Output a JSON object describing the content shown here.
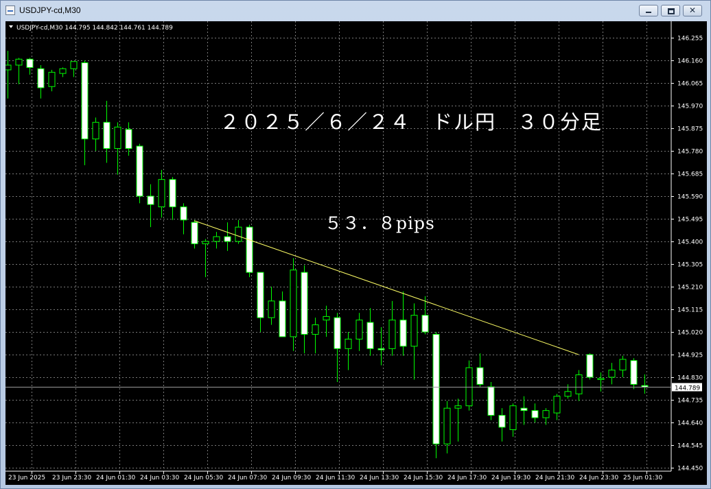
{
  "window": {
    "title": "USDJPY-cd,M30"
  },
  "chart_header": {
    "text": "USDJPY-cd,M30  144.795 144.842 144.761 144.789"
  },
  "annotations": {
    "title": "２０２５／６／２４　ドル円　３０分足",
    "pips": "５３．８pips"
  },
  "colors": {
    "background": "#000000",
    "grid": "#7a7a7a",
    "bull_body": "#000000",
    "bear_body": "#ffffff",
    "wick": "#00ff00",
    "trendline": "#ffff66",
    "bid_line": "#9a9a9a"
  },
  "chart_data": {
    "type": "candlestick",
    "symbol": "USDJPY-cd",
    "timeframe": "M30",
    "ylim": [
      144.45,
      146.255
    ],
    "y_ticks": [
      "146.255",
      "146.160",
      "146.065",
      "145.970",
      "145.875",
      "145.780",
      "145.685",
      "145.590",
      "145.495",
      "145.400",
      "145.305",
      "145.210",
      "145.115",
      "145.020",
      "144.925",
      "144.830",
      "144.735",
      "144.640",
      "144.545",
      "144.450"
    ],
    "x_ticks": [
      {
        "label": "23 Jun 2025",
        "index": 0
      },
      {
        "label": "23 Jun 23:30",
        "index": 4
      },
      {
        "label": "24 Jun 01:30",
        "index": 8
      },
      {
        "label": "24 Jun 03:30",
        "index": 12
      },
      {
        "label": "24 Jun 05:30",
        "index": 16
      },
      {
        "label": "24 Jun 07:30",
        "index": 20
      },
      {
        "label": "24 Jun 09:30",
        "index": 24
      },
      {
        "label": "24 Jun 11:30",
        "index": 28
      },
      {
        "label": "24 Jun 13:30",
        "index": 32
      },
      {
        "label": "24 Jun 15:30",
        "index": 36
      },
      {
        "label": "24 Jun 17:30",
        "index": 40
      },
      {
        "label": "24 Jun 19:30",
        "index": 44
      },
      {
        "label": "24 Jun 21:30",
        "index": 48
      },
      {
        "label": "24 Jun 23:30",
        "index": 52
      },
      {
        "label": "25 Jun 01:30",
        "index": 56
      }
    ],
    "current_price": "144.789",
    "trendline": {
      "from": {
        "index": 17,
        "price": 145.487
      },
      "to": {
        "index": 52,
        "price": 144.925
      }
    },
    "candles": [
      {
        "o": 146.12,
        "h": 146.2,
        "l": 146.0,
        "c": 146.14
      },
      {
        "o": 146.14,
        "h": 146.17,
        "l": 146.06,
        "c": 146.165
      },
      {
        "o": 146.165,
        "h": 146.17,
        "l": 146.1,
        "c": 146.13
      },
      {
        "o": 146.125,
        "h": 146.14,
        "l": 146.0,
        "c": 146.045
      },
      {
        "o": 146.05,
        "h": 146.12,
        "l": 146.03,
        "c": 146.11
      },
      {
        "o": 146.105,
        "h": 146.13,
        "l": 146.09,
        "c": 146.125
      },
      {
        "o": 146.125,
        "h": 146.15,
        "l": 146.09,
        "c": 146.155
      },
      {
        "o": 146.15,
        "h": 146.16,
        "l": 145.72,
        "c": 145.83
      },
      {
        "o": 145.83,
        "h": 145.92,
        "l": 145.78,
        "c": 145.9
      },
      {
        "o": 145.9,
        "h": 145.99,
        "l": 145.73,
        "c": 145.79
      },
      {
        "o": 145.79,
        "h": 145.9,
        "l": 145.68,
        "c": 145.88
      },
      {
        "o": 145.87,
        "h": 145.9,
        "l": 145.76,
        "c": 145.79
      },
      {
        "o": 145.8,
        "h": 145.81,
        "l": 145.56,
        "c": 145.59
      },
      {
        "o": 145.59,
        "h": 145.64,
        "l": 145.46,
        "c": 145.555
      },
      {
        "o": 145.545,
        "h": 145.7,
        "l": 145.5,
        "c": 145.66
      },
      {
        "o": 145.66,
        "h": 145.67,
        "l": 145.49,
        "c": 145.545
      },
      {
        "o": 145.545,
        "h": 145.56,
        "l": 145.43,
        "c": 145.49
      },
      {
        "o": 145.48,
        "h": 145.49,
        "l": 145.37,
        "c": 145.39
      },
      {
        "o": 145.39,
        "h": 145.41,
        "l": 145.25,
        "c": 145.4
      },
      {
        "o": 145.4,
        "h": 145.44,
        "l": 145.37,
        "c": 145.42
      },
      {
        "o": 145.42,
        "h": 145.48,
        "l": 145.36,
        "c": 145.4
      },
      {
        "o": 145.4,
        "h": 145.49,
        "l": 145.39,
        "c": 145.46
      },
      {
        "o": 145.46,
        "h": 145.47,
        "l": 145.25,
        "c": 145.27
      },
      {
        "o": 145.27,
        "h": 145.27,
        "l": 145.02,
        "c": 145.08
      },
      {
        "o": 145.08,
        "h": 145.21,
        "l": 145.05,
        "c": 145.15
      },
      {
        "o": 145.15,
        "h": 145.19,
        "l": 145.0,
        "c": 145.0
      },
      {
        "o": 145.0,
        "h": 145.33,
        "l": 144.94,
        "c": 145.28
      },
      {
        "o": 145.27,
        "h": 145.3,
        "l": 144.93,
        "c": 145.01
      },
      {
        "o": 145.01,
        "h": 145.08,
        "l": 144.93,
        "c": 145.05
      },
      {
        "o": 145.07,
        "h": 145.13,
        "l": 145.0,
        "c": 145.085
      },
      {
        "o": 145.08,
        "h": 145.1,
        "l": 144.81,
        "c": 144.95
      },
      {
        "o": 144.95,
        "h": 145.02,
        "l": 144.86,
        "c": 144.99
      },
      {
        "o": 144.99,
        "h": 145.1,
        "l": 144.94,
        "c": 145.07
      },
      {
        "o": 145.06,
        "h": 145.12,
        "l": 144.92,
        "c": 144.95
      },
      {
        "o": 144.95,
        "h": 145.04,
        "l": 144.88,
        "c": 144.945
      },
      {
        "o": 144.95,
        "h": 145.15,
        "l": 144.92,
        "c": 145.07
      },
      {
        "o": 145.07,
        "h": 145.19,
        "l": 144.92,
        "c": 144.96
      },
      {
        "o": 144.96,
        "h": 145.14,
        "l": 144.82,
        "c": 145.09
      },
      {
        "o": 145.09,
        "h": 145.17,
        "l": 145.01,
        "c": 145.02
      },
      {
        "o": 145.01,
        "h": 145.02,
        "l": 144.49,
        "c": 144.55
      },
      {
        "o": 144.55,
        "h": 144.73,
        "l": 144.51,
        "c": 144.7
      },
      {
        "o": 144.7,
        "h": 144.74,
        "l": 144.56,
        "c": 144.71
      },
      {
        "o": 144.71,
        "h": 144.9,
        "l": 144.69,
        "c": 144.87
      },
      {
        "o": 144.87,
        "h": 144.93,
        "l": 144.79,
        "c": 144.8
      },
      {
        "o": 144.79,
        "h": 144.81,
        "l": 144.65,
        "c": 144.67
      },
      {
        "o": 144.67,
        "h": 144.7,
        "l": 144.56,
        "c": 144.62
      },
      {
        "o": 144.61,
        "h": 144.72,
        "l": 144.58,
        "c": 144.71
      },
      {
        "o": 144.7,
        "h": 144.75,
        "l": 144.63,
        "c": 144.69
      },
      {
        "o": 144.69,
        "h": 144.72,
        "l": 144.64,
        "c": 144.66
      },
      {
        "o": 144.66,
        "h": 144.7,
        "l": 144.63,
        "c": 144.69
      },
      {
        "o": 144.68,
        "h": 144.76,
        "l": 144.65,
        "c": 144.75
      },
      {
        "o": 144.75,
        "h": 144.8,
        "l": 144.74,
        "c": 144.77
      },
      {
        "o": 144.76,
        "h": 144.86,
        "l": 144.73,
        "c": 144.84
      },
      {
        "o": 144.925,
        "h": 144.93,
        "l": 144.82,
        "c": 144.83
      },
      {
        "o": 144.82,
        "h": 144.85,
        "l": 144.77,
        "c": 144.825
      },
      {
        "o": 144.83,
        "h": 144.89,
        "l": 144.8,
        "c": 144.86
      },
      {
        "o": 144.86,
        "h": 144.92,
        "l": 144.83,
        "c": 144.905
      },
      {
        "o": 144.9,
        "h": 144.91,
        "l": 144.78,
        "c": 144.8
      },
      {
        "o": 144.795,
        "h": 144.842,
        "l": 144.761,
        "c": 144.789
      }
    ]
  }
}
